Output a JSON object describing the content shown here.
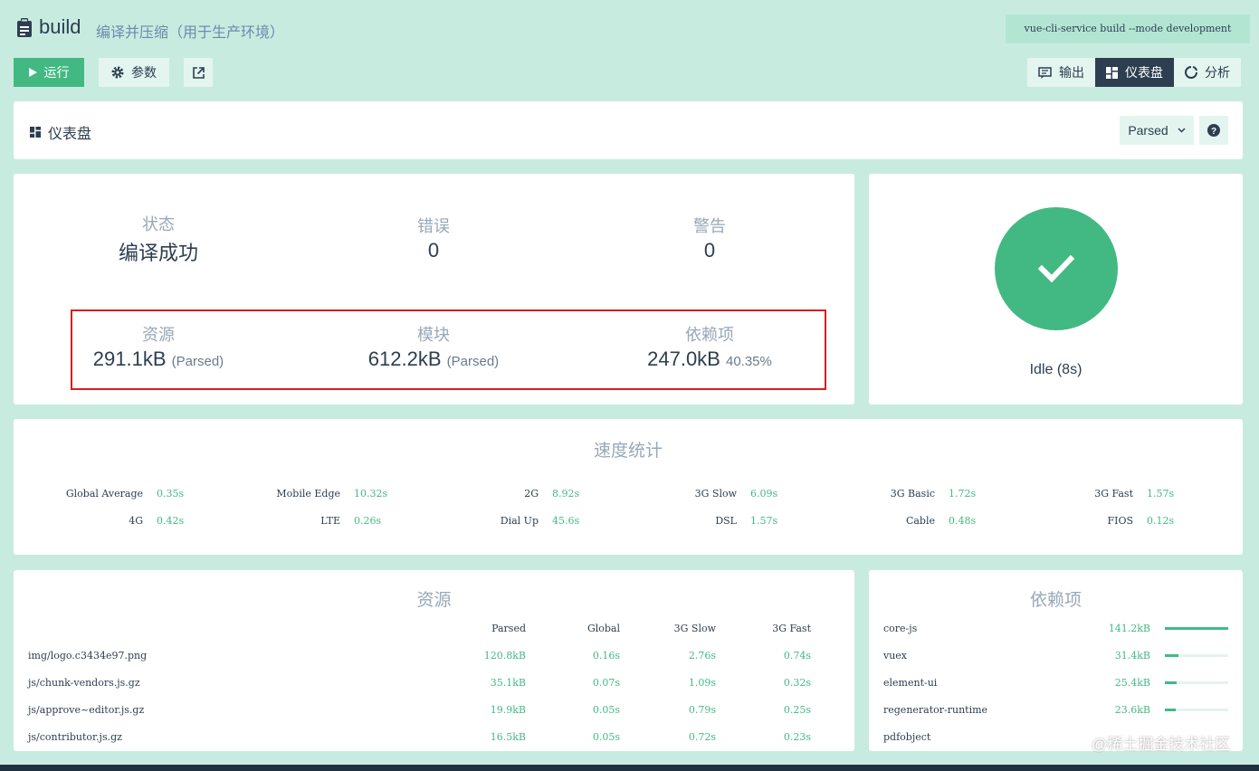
{
  "header": {
    "title": "build",
    "description": "编译并压缩（用于生产环境）",
    "command": "vue-cli-service build --mode development"
  },
  "toolbar": {
    "run_label": "运行",
    "params_label": "参数",
    "open_icon": "external-link-icon"
  },
  "view_tabs": [
    {
      "label": "输出",
      "icon": "output-icon"
    },
    {
      "label": "仪表盘",
      "icon": "dashboard-icon",
      "active": true
    },
    {
      "label": "分析",
      "icon": "analysis-icon"
    }
  ],
  "dashboard": {
    "title": "仪表盘",
    "size_mode": "Parsed",
    "help_icon": "help-icon"
  },
  "stats": {
    "status_label": "状态",
    "status_value": "编译成功",
    "errors_label": "错误",
    "errors_value": "0",
    "warnings_label": "警告",
    "warnings_value": "0",
    "assets_label": "资源",
    "assets_value": "291.1kB",
    "assets_note": "(Parsed)",
    "modules_label": "模块",
    "modules_value": "612.2kB",
    "modules_note": "(Parsed)",
    "deps_label": "依赖项",
    "deps_value": "247.0kB",
    "deps_note": "40.35%"
  },
  "status_panel": {
    "icon": "check-icon",
    "color": "#42b983",
    "idle_text": "Idle (8s)"
  },
  "speed": {
    "title": "速度统计",
    "items": [
      {
        "name": "Global Average",
        "value": "0.35s"
      },
      {
        "name": "Mobile Edge",
        "value": "10.32s"
      },
      {
        "name": "2G",
        "value": "8.92s"
      },
      {
        "name": "3G Slow",
        "value": "6.09s"
      },
      {
        "name": "3G Basic",
        "value": "1.72s"
      },
      {
        "name": "3G Fast",
        "value": "1.57s"
      },
      {
        "name": "4G",
        "value": "0.42s"
      },
      {
        "name": "LTE",
        "value": "0.26s"
      },
      {
        "name": "Dial Up",
        "value": "45.6s"
      },
      {
        "name": "DSL",
        "value": "1.57s"
      },
      {
        "name": "Cable",
        "value": "0.48s"
      },
      {
        "name": "FIOS",
        "value": "0.12s"
      }
    ]
  },
  "assets": {
    "title": "资源",
    "headers": [
      "Parsed",
      "Global",
      "3G Slow",
      "3G Fast"
    ],
    "rows": [
      {
        "name": "img/logo.c3434e97.png",
        "parsed": "120.8kB",
        "global": "0.16s",
        "slow": "2.76s",
        "fast": "0.74s"
      },
      {
        "name": "js/chunk-vendors.js.gz",
        "parsed": "35.1kB",
        "global": "0.07s",
        "slow": "1.09s",
        "fast": "0.32s"
      },
      {
        "name": "js/approve~editor.js.gz",
        "parsed": "19.9kB",
        "global": "0.05s",
        "slow": "0.79s",
        "fast": "0.25s"
      },
      {
        "name": "js/contributor.js.gz",
        "parsed": "16.5kB",
        "global": "0.05s",
        "slow": "0.72s",
        "fast": "0.23s"
      }
    ]
  },
  "dependencies": {
    "title": "依赖项",
    "rows": [
      {
        "name": "core-js",
        "size": "141.2kB",
        "fraction": 1.0
      },
      {
        "name": "vuex",
        "size": "31.4kB",
        "fraction": 0.22
      },
      {
        "name": "element-ui",
        "size": "25.4kB",
        "fraction": 0.18
      },
      {
        "name": "regenerator-runtime",
        "size": "23.6kB",
        "fraction": 0.17
      },
      {
        "name": "pdfobject",
        "size": "",
        "fraction": 0.1
      }
    ]
  },
  "watermark": "@稀土掘金技术社区"
}
